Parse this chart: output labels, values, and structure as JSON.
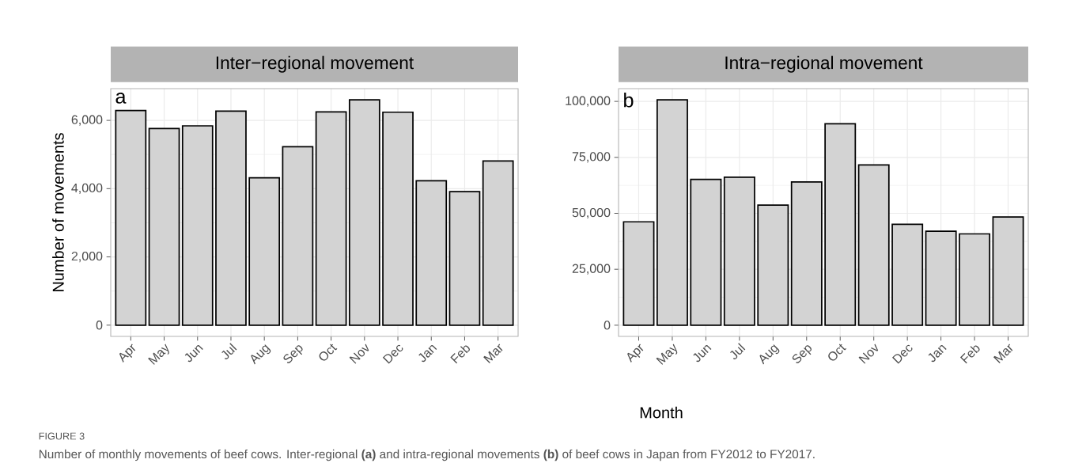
{
  "chart_data": [
    {
      "type": "bar",
      "title": "Inter−regional movement",
      "ylabel": "Number of movements",
      "categories": [
        "Apr",
        "May",
        "Jun",
        "Jul",
        "Aug",
        "Sep",
        "Oct",
        "Nov",
        "Dec",
        "Jan",
        "Feb",
        "Mar"
      ],
      "values": [
        6290,
        5760,
        5840,
        6270,
        4320,
        5230,
        6250,
        6600,
        6240,
        4230,
        3910,
        4810
      ],
      "color": "#d3d3d3",
      "ylim": [
        -330,
        6930
      ],
      "yticks": [
        0,
        {
          "value": 2000,
          "label": "2,000"
        },
        {
          "value": 4000,
          "label": "4,000"
        },
        {
          "value": 6000,
          "label": "6,000"
        }
      ],
      "grid": true,
      "annotations": [
        "a",
        "FIGURE 3",
        "Number of monthly movements of beef cows. Inter-regional **(a)** and intra-regional movements **(b)** of beef cows in Japan from FY2012 to FY2017."
      ]
    },
    {
      "type": "bar",
      "title": "Intra−regional movement",
      "xlabel": "Month",
      "categories": [
        "Apr",
        "May",
        "Jun",
        "Jul",
        "Aug",
        "Sep",
        "Oct",
        "Nov",
        "Dec",
        "Jan",
        "Feb",
        "Mar"
      ],
      "values": [
        46200,
        100700,
        65200,
        66100,
        53700,
        64000,
        90000,
        71600,
        45100,
        42000,
        40800,
        48400
      ],
      "color": "#d3d3d3",
      "ylim": [
        -5000,
        105700
      ],
      "yticks": [
        0,
        {
          "value": 25000,
          "label": "25,000"
        },
        {
          "value": 50000,
          "label": "50,000"
        },
        {
          "value": 75000,
          "label": "75,000"
        },
        {
          "value": 100000,
          "label": "100,000"
        }
      ],
      "grid": true,
      "annotations": [
        "b"
      ]
    }
  ]
}
